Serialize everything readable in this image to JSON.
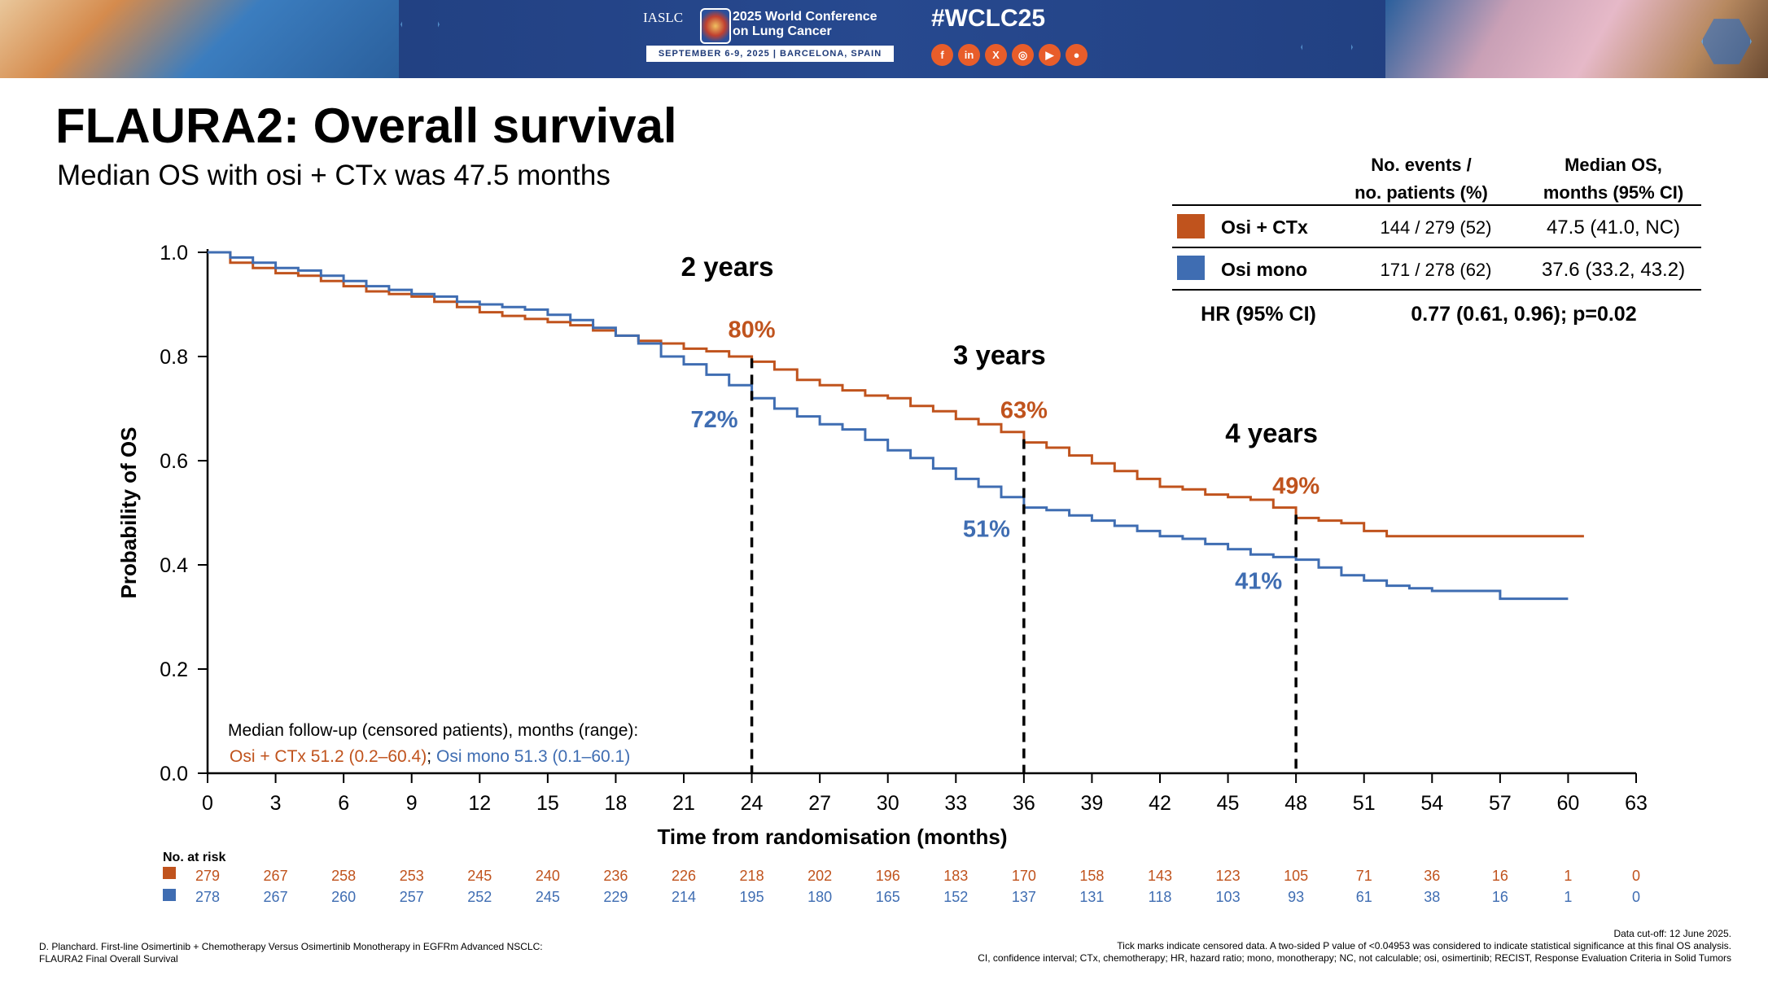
{
  "banner": {
    "org": "IASLC",
    "conference_line1": "2025 World Conference",
    "conference_line2": "on Lung Cancer",
    "date_location": "SEPTEMBER 6-9, 2025  |  BARCELONA, SPAIN",
    "hashtag": "#WCLC25",
    "social_icons": [
      "facebook-icon",
      "linkedin-icon",
      "x-icon",
      "instagram-icon",
      "youtube-icon",
      "wechat-icon"
    ]
  },
  "slide": {
    "title": "FLAURA2: Overall survival",
    "subtitle": "Median OS with osi + CTx was 47.5 months"
  },
  "summary_table": {
    "col1_header_1": "No. events /",
    "col1_header_2": "no. patients (%)",
    "col2_header_1": "Median OS,",
    "col2_header_2": "months (95% CI)",
    "rows": [
      {
        "label": "Osi + CTx",
        "events": "144 / 279 (52)",
        "median": "47.5 (41.0, NC)",
        "color": "#c0531d"
      },
      {
        "label": "Osi mono",
        "events": "171 / 278 (62)",
        "median": "37.6 (33.2, 43.2)",
        "color": "#3f6db2"
      }
    ],
    "hr_label": "HR (95% CI)",
    "hr_value": "0.77 (0.61, 0.96); p=0.02"
  },
  "chart_data": {
    "type": "line",
    "subtype": "kaplan-meier",
    "ylabel": "Probability of OS",
    "xlabel": "Time from randomisation (months)",
    "xlim": [
      0,
      63
    ],
    "ylim": [
      0,
      1
    ],
    "xticks": [
      0,
      3,
      6,
      9,
      12,
      15,
      18,
      21,
      24,
      27,
      30,
      33,
      36,
      39,
      42,
      45,
      48,
      51,
      54,
      57,
      60,
      63
    ],
    "yticks": [
      "0.0",
      "0.2",
      "0.4",
      "0.6",
      "0.8",
      "1.0"
    ],
    "series": [
      {
        "name": "Osi + CTx",
        "color": "#c0531d",
        "x": [
          0,
          1,
          2,
          3,
          4,
          5,
          6,
          7,
          8,
          9,
          10,
          11,
          12,
          13,
          14,
          15,
          16,
          17,
          18,
          19,
          20,
          21,
          22,
          23,
          24,
          25,
          26,
          27,
          28,
          29,
          30,
          31,
          32,
          33,
          34,
          35,
          36,
          37,
          38,
          39,
          40,
          41,
          42,
          43,
          44,
          45,
          46,
          47,
          48,
          49,
          50,
          51,
          52,
          53,
          54,
          55,
          56,
          57,
          58,
          59,
          60,
          60.7
        ],
        "y": [
          1.0,
          0.98,
          0.97,
          0.96,
          0.955,
          0.945,
          0.935,
          0.925,
          0.92,
          0.915,
          0.905,
          0.895,
          0.885,
          0.878,
          0.872,
          0.866,
          0.86,
          0.85,
          0.84,
          0.83,
          0.825,
          0.815,
          0.81,
          0.8,
          0.79,
          0.775,
          0.755,
          0.745,
          0.735,
          0.725,
          0.72,
          0.705,
          0.695,
          0.68,
          0.67,
          0.655,
          0.635,
          0.625,
          0.61,
          0.595,
          0.58,
          0.565,
          0.55,
          0.545,
          0.535,
          0.53,
          0.525,
          0.51,
          0.49,
          0.485,
          0.48,
          0.465,
          0.455,
          0.455,
          0.455,
          0.455,
          0.455,
          0.455,
          0.455,
          0.455,
          0.455,
          0.455
        ]
      },
      {
        "name": "Osi mono",
        "color": "#3f6db2",
        "x": [
          0,
          1,
          2,
          3,
          4,
          5,
          6,
          7,
          8,
          9,
          10,
          11,
          12,
          13,
          14,
          15,
          16,
          17,
          18,
          19,
          20,
          21,
          22,
          23,
          24,
          25,
          26,
          27,
          28,
          29,
          30,
          31,
          32,
          33,
          34,
          35,
          36,
          37,
          38,
          39,
          40,
          41,
          42,
          43,
          44,
          45,
          46,
          47,
          48,
          49,
          50,
          51,
          52,
          53,
          54,
          55,
          56,
          57,
          58,
          59,
          60
        ],
        "y": [
          1.0,
          0.99,
          0.98,
          0.97,
          0.965,
          0.955,
          0.945,
          0.935,
          0.928,
          0.92,
          0.915,
          0.905,
          0.9,
          0.895,
          0.89,
          0.88,
          0.87,
          0.855,
          0.84,
          0.825,
          0.8,
          0.785,
          0.765,
          0.745,
          0.72,
          0.7,
          0.685,
          0.67,
          0.66,
          0.64,
          0.62,
          0.605,
          0.585,
          0.565,
          0.55,
          0.53,
          0.51,
          0.505,
          0.495,
          0.485,
          0.475,
          0.465,
          0.455,
          0.45,
          0.44,
          0.43,
          0.42,
          0.415,
          0.41,
          0.395,
          0.38,
          0.37,
          0.36,
          0.355,
          0.35,
          0.35,
          0.35,
          0.335,
          0.335,
          0.335,
          0.335
        ]
      }
    ],
    "annotations": [
      {
        "label": "2 years",
        "x": 24,
        "y": 0.955
      },
      {
        "label": "3 years",
        "x": 36,
        "y": 0.785
      },
      {
        "label": "4 years",
        "x": 48,
        "y": 0.635
      }
    ],
    "landmarks": [
      {
        "x": 24,
        "osi_ctx": "80%",
        "osi_mono": "72%"
      },
      {
        "x": 36,
        "osi_ctx": "63%",
        "osi_mono": "51%"
      },
      {
        "x": 48,
        "osi_ctx": "49%",
        "osi_mono": "41%"
      }
    ],
    "followup_line1": "Median follow-up (censored patients), months (range):",
    "followup_ctx": "Osi + CTx 51.2 (0.2–60.4)",
    "followup_sep": ";",
    "followup_mono": "Osi mono 51.3 (0.1–60.1)",
    "at_risk_label": "No. at risk",
    "at_risk": {
      "osi_ctx": [
        279,
        267,
        258,
        253,
        245,
        240,
        236,
        226,
        218,
        202,
        196,
        183,
        170,
        158,
        143,
        123,
        105,
        71,
        36,
        16,
        1,
        0
      ],
      "osi_mono": [
        278,
        267,
        260,
        257,
        252,
        245,
        229,
        214,
        195,
        180,
        165,
        152,
        137,
        131,
        118,
        103,
        93,
        61,
        38,
        16,
        1,
        0
      ]
    }
  },
  "footer": {
    "reference_line1": "D. Planchard. First-line Osimertinib + Chemotherapy Versus Osimertinib Monotherapy in EGFRm Advanced NSCLC:",
    "reference_line2": "FLAURA2 Final Overall Survival",
    "cutoff": "Data cut-off: 12 June 2025.",
    "note1": "Tick marks indicate censored data. A two-sided P value of <0.04953 was considered to indicate statistical significance at this final OS analysis.",
    "note2": "CI, confidence interval; CTx, chemotherapy; HR, hazard ratio; mono, monotherapy; NC, not calculable; osi, osimertinib; RECIST, Response Evaluation Criteria in Solid Tumors"
  }
}
